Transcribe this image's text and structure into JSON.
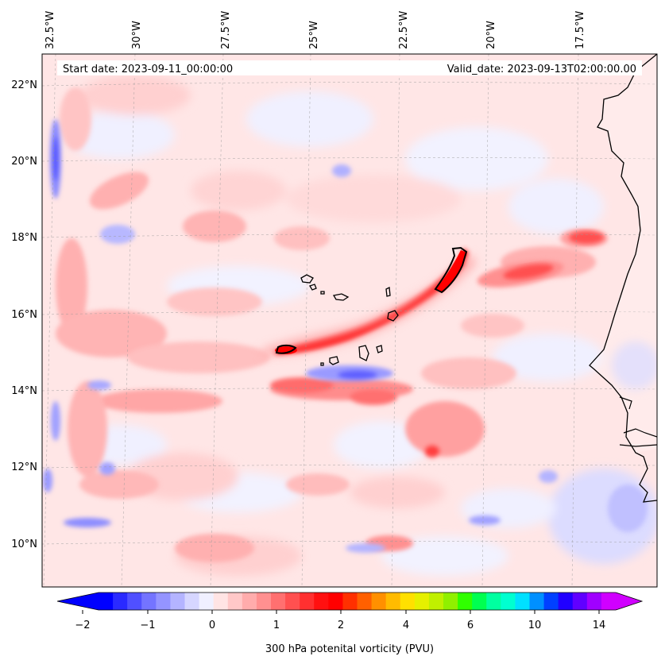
{
  "header": {
    "start_label": "Start date: 2023-09-11_00:00:00",
    "valid_label": "Valid_date: 2023-09-13T02:00:00.00"
  },
  "map": {
    "variable": "300 hPa potential vorticity",
    "lon_labels": [
      "32.5°W",
      "30°W",
      "27.5°W",
      "25°W",
      "22.5°W",
      "20°W",
      "17.5°W"
    ],
    "lat_labels": [
      "22°N",
      "20°N",
      "18°N",
      "16°N",
      "14°N",
      "12°N",
      "10°N"
    ]
  },
  "colorbar": {
    "title": "300 hPa potenital vorticity (PVU)",
    "tick_labels": [
      "−2",
      "−1",
      "0",
      "1",
      "2",
      "4",
      "6",
      "10",
      "14"
    ],
    "colors": [
      "#0000ff",
      "#2a2aff",
      "#5050ff",
      "#7474ff",
      "#9494ff",
      "#b4b4ff",
      "#d6d6ff",
      "#f0f0ff",
      "#ffe4e4",
      "#ffc8c8",
      "#ffacac",
      "#ff9090",
      "#ff7070",
      "#ff5050",
      "#ff3030",
      "#ff1010",
      "#ff0000",
      "#ff3000",
      "#ff6000",
      "#ff9000",
      "#ffbb00",
      "#ffe000",
      "#e6f000",
      "#c0f000",
      "#90f000",
      "#30ff00",
      "#00ff50",
      "#00ffa0",
      "#00ffd0",
      "#00e0ff",
      "#0090ff",
      "#0040ff",
      "#2000ff",
      "#6000ff",
      "#a000ff",
      "#d000ff"
    ]
  }
}
